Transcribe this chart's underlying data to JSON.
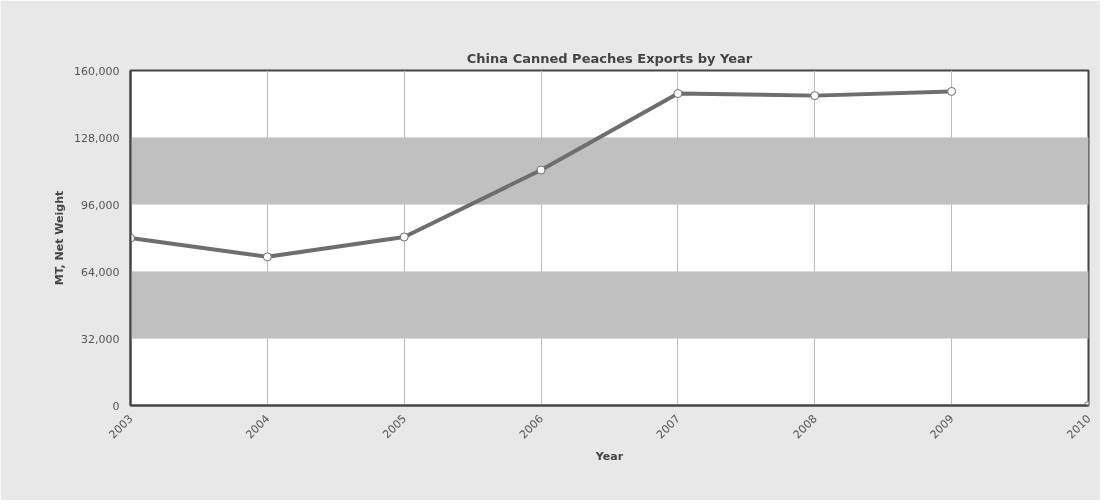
{
  "chart_data": {
    "type": "line",
    "title": "China Canned Peaches Exports by Year",
    "xlabel": "Year",
    "ylabel": "MT, Net Weight",
    "x": [
      2003,
      2004,
      2005,
      2006,
      2007,
      2008,
      2009
    ],
    "series": [
      {
        "color": "#6e6e6e",
        "values": [
          80000,
          71000,
          80500,
          112500,
          149000,
          148000,
          150000
        ]
      },
      {
        "type": "scatter",
        "color": "#6e6e6e",
        "x": [
          2010
        ],
        "values": [
          0
        ]
      }
    ],
    "xlim": [
      2003,
      2010
    ],
    "xticks": [
      2003,
      2004,
      2005,
      2006,
      2007,
      2008,
      2009,
      2010
    ],
    "ylim": [
      0,
      160000
    ],
    "yticks": [
      {
        "value": 0,
        "label": "0"
      },
      {
        "value": 32000,
        "label": "32,000"
      },
      {
        "value": 64000,
        "label": "64,000"
      },
      {
        "value": 96000,
        "label": "96,000"
      },
      {
        "value": 128000,
        "label": "128,000"
      },
      {
        "value": 160000,
        "label": "160,000"
      }
    ],
    "bands": [
      {
        "axis": "y",
        "from": 32000,
        "to": 64000,
        "color": "#c0c0c0"
      },
      {
        "axis": "y",
        "from": 96000,
        "to": 128000,
        "color": "#c0c0c0"
      }
    ],
    "grid": "x",
    "marker": "circle"
  }
}
